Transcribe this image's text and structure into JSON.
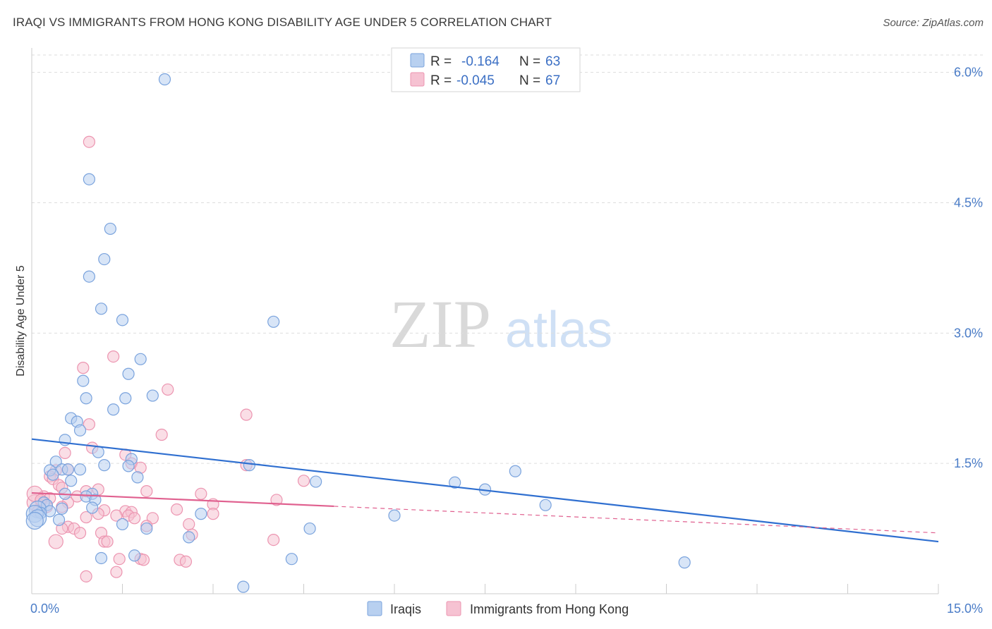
{
  "title": "IRAQI VS IMMIGRANTS FROM HONG KONG DISABILITY AGE UNDER 5 CORRELATION CHART",
  "source": "Source: ZipAtlas.com",
  "watermark": {
    "zip": "ZIP",
    "atlas": "atlas"
  },
  "colors": {
    "blue_fill": "#b8d0f0",
    "blue_stroke": "#7aa3dd",
    "blue_line": "#2f6fd0",
    "pink_fill": "#f6c2d2",
    "pink_stroke": "#ec94b0",
    "pink_line": "#e0608f",
    "grid": "#dddddd",
    "tick_text": "#4a7cc7"
  },
  "legend": {
    "rows": [
      {
        "r_label": "R =",
        "r_value": "-0.164",
        "n_label": "N =",
        "n_value": "63",
        "series": "Iraqis"
      },
      {
        "r_label": "R =",
        "r_value": "-0.045",
        "n_label": "N =",
        "n_value": "67",
        "series": "Immigrants from Hong Kong"
      }
    ]
  },
  "chart_data": {
    "type": "scatter",
    "title": "IRAQI VS IMMIGRANTS FROM HONG KONG DISABILITY AGE UNDER 5 CORRELATION CHART",
    "xlabel": "",
    "ylabel": "Disability Age Under 5",
    "xlim": [
      0,
      15
    ],
    "ylim": [
      0,
      6.2
    ],
    "x_ticks": [
      {
        "value": 0,
        "label": "0.0%"
      },
      {
        "value": 15,
        "label": "15.0%"
      }
    ],
    "y_ticks": [
      {
        "value": 1.5,
        "label": "1.5%"
      },
      {
        "value": 3.0,
        "label": "3.0%"
      },
      {
        "value": 4.5,
        "label": "4.5%"
      },
      {
        "value": 6.0,
        "label": "6.0%"
      }
    ],
    "grid": true,
    "legend_position": "top-center",
    "series": [
      {
        "name": "Iraqis",
        "color": "#7aa3dd",
        "trend": {
          "x0": 0,
          "y0": 1.78,
          "x1": 15,
          "y1": 0.6,
          "solid_until": 15
        },
        "points": [
          [
            2.2,
            5.92
          ],
          [
            0.95,
            4.77
          ],
          [
            1.3,
            4.2
          ],
          [
            1.2,
            3.85
          ],
          [
            0.95,
            3.65
          ],
          [
            1.15,
            3.28
          ],
          [
            1.5,
            3.15
          ],
          [
            4.0,
            3.13
          ],
          [
            1.8,
            2.7
          ],
          [
            1.6,
            2.53
          ],
          [
            0.85,
            2.45
          ],
          [
            2.0,
            2.28
          ],
          [
            0.9,
            2.25
          ],
          [
            1.55,
            2.25
          ],
          [
            1.35,
            2.12
          ],
          [
            0.65,
            2.02
          ],
          [
            0.75,
            1.98
          ],
          [
            0.8,
            1.88
          ],
          [
            0.55,
            1.77
          ],
          [
            1.1,
            1.63
          ],
          [
            0.4,
            1.52
          ],
          [
            1.65,
            1.55
          ],
          [
            1.2,
            1.48
          ],
          [
            1.6,
            1.47
          ],
          [
            3.6,
            1.48
          ],
          [
            0.3,
            1.42
          ],
          [
            0.5,
            1.43
          ],
          [
            0.6,
            1.43
          ],
          [
            0.8,
            1.43
          ],
          [
            0.35,
            1.37
          ],
          [
            1.75,
            1.34
          ],
          [
            0.65,
            1.3
          ],
          [
            4.7,
            1.29
          ],
          [
            7.0,
            1.28
          ],
          [
            8.0,
            1.41
          ],
          [
            7.5,
            1.2
          ],
          [
            0.55,
            1.15
          ],
          [
            1.0,
            1.15
          ],
          [
            0.9,
            1.12
          ],
          [
            1.05,
            1.08
          ],
          [
            0.2,
            1.05
          ],
          [
            0.25,
            1.02
          ],
          [
            8.5,
            1.02
          ],
          [
            1.0,
            0.99
          ],
          [
            0.5,
            0.98
          ],
          [
            0.1,
            0.97
          ],
          [
            0.3,
            0.95
          ],
          [
            0.15,
            0.93
          ],
          [
            0.05,
            0.92
          ],
          [
            2.8,
            0.92
          ],
          [
            6.0,
            0.9
          ],
          [
            0.1,
            0.87
          ],
          [
            0.45,
            0.85
          ],
          [
            0.05,
            0.84
          ],
          [
            1.5,
            0.8
          ],
          [
            1.9,
            0.75
          ],
          [
            4.6,
            0.75
          ],
          [
            2.6,
            0.65
          ],
          [
            1.7,
            0.44
          ],
          [
            1.15,
            0.41
          ],
          [
            4.3,
            0.4
          ],
          [
            10.8,
            0.36
          ],
          [
            3.5,
            0.08
          ]
        ]
      },
      {
        "name": "Immigrants from Hong Kong",
        "color": "#ec94b0",
        "trend": {
          "x0": 0,
          "y0": 1.16,
          "x1": 15,
          "y1": 0.7,
          "solid_until": 5.0
        },
        "points": [
          [
            0.95,
            5.2
          ],
          [
            1.35,
            2.73
          ],
          [
            0.85,
            2.6
          ],
          [
            2.25,
            2.35
          ],
          [
            3.55,
            2.06
          ],
          [
            0.95,
            1.95
          ],
          [
            2.15,
            1.83
          ],
          [
            1.0,
            1.68
          ],
          [
            0.55,
            1.62
          ],
          [
            1.55,
            1.6
          ],
          [
            1.65,
            1.5
          ],
          [
            3.55,
            1.48
          ],
          [
            1.8,
            1.45
          ],
          [
            0.4,
            1.42
          ],
          [
            0.6,
            1.43
          ],
          [
            0.3,
            1.35
          ],
          [
            0.35,
            1.32
          ],
          [
            4.5,
            1.3
          ],
          [
            0.45,
            1.25
          ],
          [
            0.5,
            1.22
          ],
          [
            1.1,
            1.2
          ],
          [
            1.9,
            1.18
          ],
          [
            0.9,
            1.18
          ],
          [
            2.8,
            1.15
          ],
          [
            0.2,
            1.12
          ],
          [
            0.75,
            1.12
          ],
          [
            0.3,
            1.1
          ],
          [
            4.05,
            1.08
          ],
          [
            0.15,
            1.06
          ],
          [
            0.6,
            1.05
          ],
          [
            0.05,
            1.05
          ],
          [
            3.0,
            1.03
          ],
          [
            0.25,
            1.0
          ],
          [
            0.5,
            1.0
          ],
          [
            2.4,
            0.97
          ],
          [
            1.2,
            0.96
          ],
          [
            1.55,
            0.95
          ],
          [
            1.65,
            0.94
          ],
          [
            0.1,
            0.95
          ],
          [
            1.1,
            0.92
          ],
          [
            3.0,
            0.92
          ],
          [
            1.4,
            0.9
          ],
          [
            1.6,
            0.9
          ],
          [
            0.9,
            0.88
          ],
          [
            1.7,
            0.87
          ],
          [
            2.0,
            0.87
          ],
          [
            2.6,
            0.8
          ],
          [
            1.9,
            0.78
          ],
          [
            0.6,
            0.77
          ],
          [
            0.7,
            0.75
          ],
          [
            0.5,
            0.75
          ],
          [
            0.8,
            0.7
          ],
          [
            1.15,
            0.7
          ],
          [
            2.65,
            0.68
          ],
          [
            1.2,
            0.6
          ],
          [
            1.25,
            0.6
          ],
          [
            4.0,
            0.62
          ],
          [
            0.4,
            0.6
          ],
          [
            1.45,
            0.4
          ],
          [
            1.8,
            0.4
          ],
          [
            1.85,
            0.39
          ],
          [
            2.45,
            0.39
          ],
          [
            2.55,
            0.37
          ],
          [
            1.4,
            0.25
          ],
          [
            0.9,
            0.2
          ],
          [
            0.05,
            1.15
          ],
          [
            0.15,
            1.08
          ]
        ]
      }
    ]
  }
}
